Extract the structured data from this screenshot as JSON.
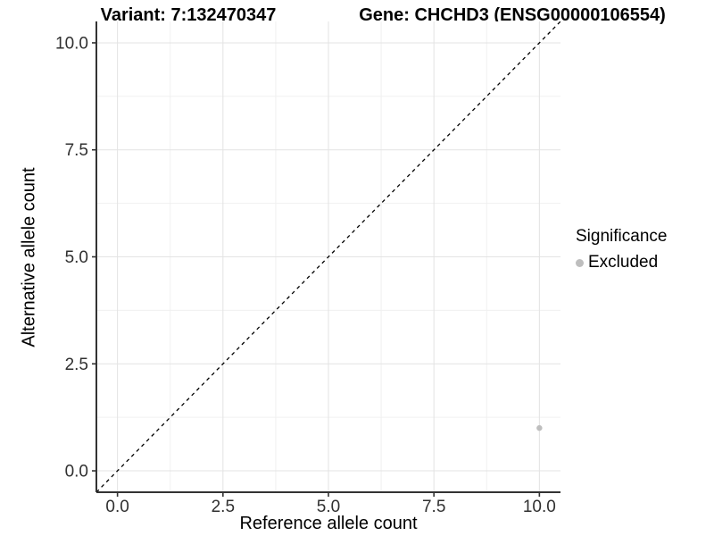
{
  "chart_data": {
    "type": "scatter",
    "title_left": "Variant: 7:132470347",
    "title_right": "Gene: CHCHD3 (ENSG00000106554)",
    "xlabel": "Reference allele count",
    "ylabel": "Alternative allele count",
    "xlim": [
      -0.5,
      10.5
    ],
    "ylim": [
      -0.5,
      10.5
    ],
    "xticks": [
      0,
      2.5,
      5,
      7.5,
      10
    ],
    "xtick_labels": [
      "0.0",
      "2.5",
      "5.0",
      "7.5",
      "10.0"
    ],
    "yticks": [
      0,
      2.5,
      5,
      7.5,
      10
    ],
    "ytick_labels": [
      "0.0",
      "2.5",
      "5.0",
      "7.5",
      "10.0"
    ],
    "x_minor_ticks": [
      1.25,
      3.75,
      6.25,
      8.75
    ],
    "y_minor_ticks": [
      1.25,
      3.75,
      6.25,
      8.75
    ],
    "grid": "major+minor",
    "reference_line": {
      "kind": "identity y=x",
      "style": "dashed",
      "color": "#000000"
    },
    "series": [
      {
        "name": "Excluded",
        "color": "#bebebe",
        "points": [
          {
            "x": 10,
            "y": 1
          }
        ]
      }
    ],
    "legend": {
      "title": "Significance",
      "position": "right",
      "entries": [
        {
          "label": "Excluded",
          "color": "#bebebe",
          "marker": "circle"
        }
      ]
    },
    "colors": {
      "panel_background": "#ffffff",
      "grid_major": "#e3e3e3",
      "grid_minor": "#f0f0f0",
      "axis_line": "#333333",
      "tick_mark": "#333333",
      "tick_label": "#303030",
      "title": "#000000"
    }
  }
}
